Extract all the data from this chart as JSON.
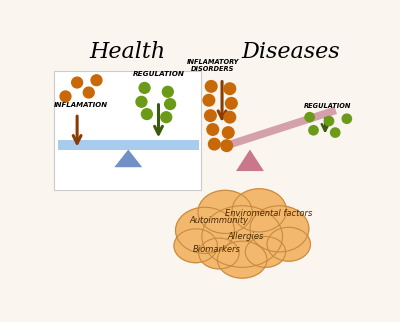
{
  "bg_color": "#faf5ee",
  "title_health": "Health",
  "title_diseases": "Diseases",
  "title_fontsize": 16,
  "label_regulation1": "REGULATION",
  "label_regulation2": "REGULATION",
  "label_inflammation": "INFLAMATION",
  "label_inflammatory": "INFLAMATORY\nDISORDERS",
  "cloud_texts": [
    "Autoimmunity",
    "Enviromental factors",
    "Allergies",
    "Biomarkers"
  ],
  "cloud_color": "#f2b96e",
  "cloud_edge_color": "#c98a40",
  "balance_bar_color": "#a8ccee",
  "balance_bar_color2": "#d4a0aa",
  "triangle_color": "#7090c8",
  "triangle_color2": "#c87888",
  "arrow_inflammation_color": "#8b3a00",
  "arrow_regulation_color": "#3a5a10",
  "dot_green_color": "#6a9a18",
  "dot_orange_color": "#c86808",
  "white_box_color": "#ffffff",
  "white_box_edge": "#cccccc"
}
